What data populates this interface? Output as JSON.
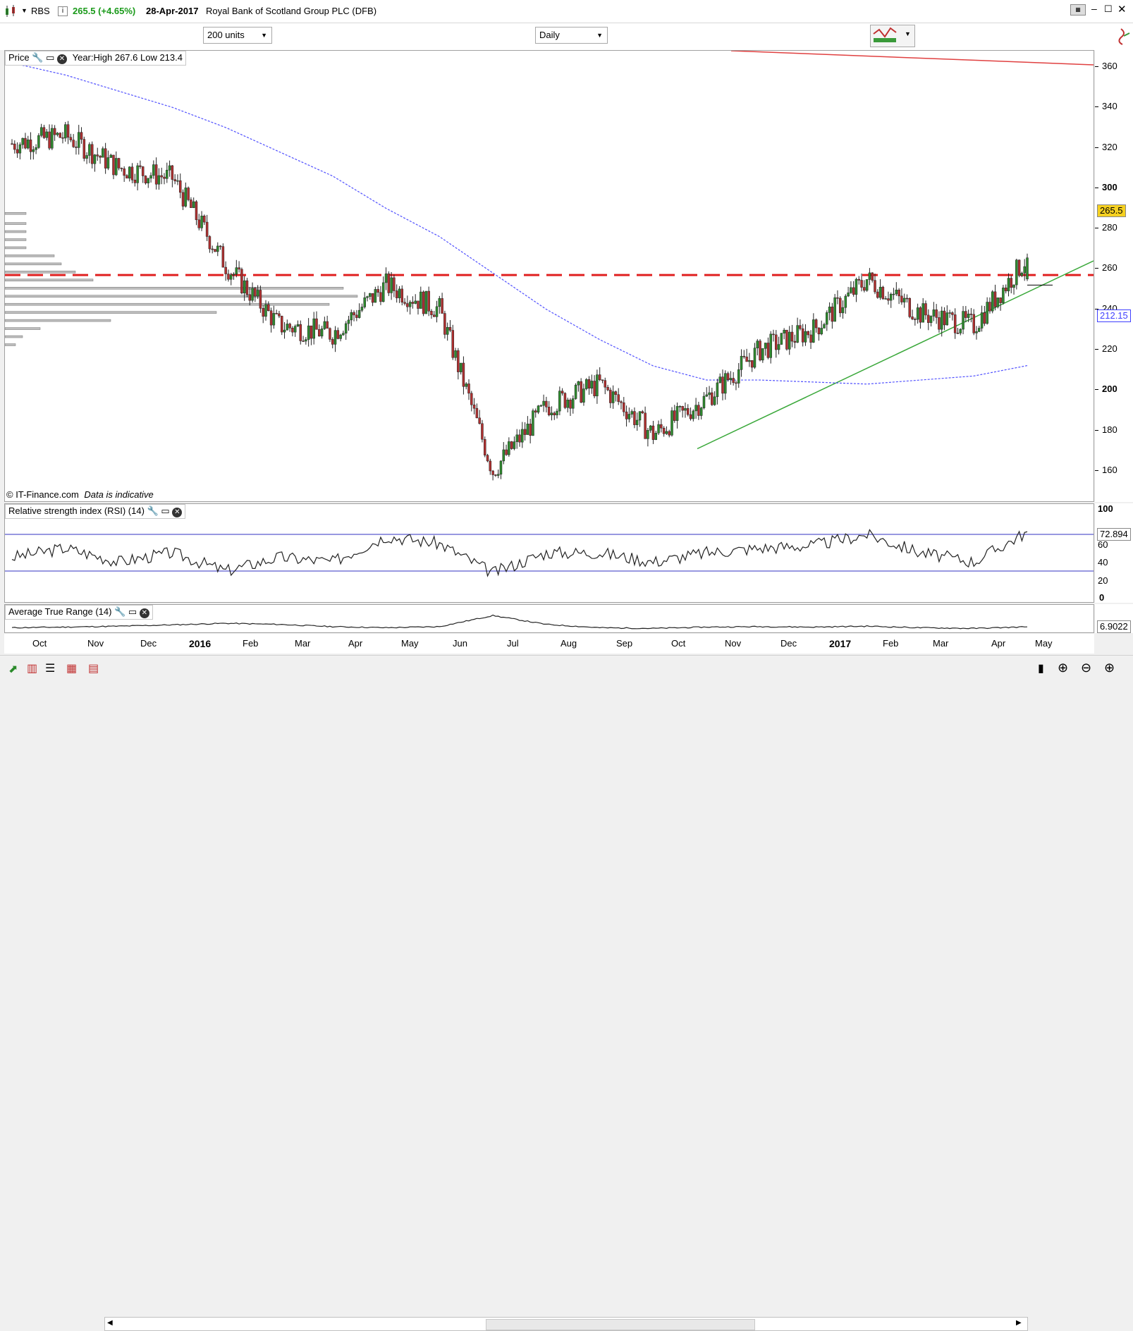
{
  "header": {
    "symbol": "RBS",
    "price_change": "265.5 (+4.65%)",
    "date": "28-Apr-2017",
    "instrument": "Royal Bank of Scotland Group PLC (DFB)"
  },
  "toolbar": {
    "units_select": "200 units",
    "period_select": "Daily"
  },
  "price_pane": {
    "title": "Price",
    "info": "Year:High 267.6 Low 213.4",
    "footer_source": "© IT-Finance.com",
    "footer_note": "Data is indicative",
    "last_price_tag": "265.5",
    "ma_tag": "212.15",
    "yticks": [
      "360",
      "340",
      "320",
      "300",
      "280",
      "260",
      "240",
      "220",
      "200",
      "180",
      "160"
    ]
  },
  "rsi_pane": {
    "title": "Relative strength index (RSI) (14)",
    "value_tag": "72.894",
    "yticks": [
      "100",
      "60",
      "40",
      "20",
      "0"
    ]
  },
  "atr_pane": {
    "title": "Average True Range (14)",
    "value_tag": "6.9022"
  },
  "xaxis": {
    "labels": [
      "Oct",
      "Nov",
      "Dec",
      "2016",
      "Feb",
      "Mar",
      "Apr",
      "May",
      "Jun",
      "Jul",
      "Aug",
      "Sep",
      "Oct",
      "Nov",
      "Dec",
      "2017",
      "Feb",
      "Mar",
      "Apr",
      "May"
    ]
  },
  "chart_data": [
    {
      "type": "line",
      "title": "Price",
      "ylim": [
        145,
        368
      ],
      "x": [
        "2015-10",
        "2015-11",
        "2015-12",
        "2016-01",
        "2016-02",
        "2016-03",
        "2016-04",
        "2016-05",
        "2016-06",
        "2016-07",
        "2016-08",
        "2016-09",
        "2016-10",
        "2016-11",
        "2016-12",
        "2017-01",
        "2017-02",
        "2017-03",
        "2017-04",
        "2017-04-28"
      ],
      "series": [
        {
          "values": [
            322,
            326,
            310,
            305,
            262,
            232,
            228,
            252,
            240,
            160,
            192,
            203,
            178,
            196,
            220,
            230,
            255,
            238,
            232,
            265.5
          ]
        }
      ],
      "reference_lines": {
        "resistance": 257,
        "moving_average_last": 212.15
      },
      "annotations": [
        "Year:High 267.6 Low 213.4"
      ]
    },
    {
      "type": "line",
      "title": "Relative strength index (RSI) (14)",
      "ylim": [
        0,
        100
      ],
      "series": [
        {
          "values": [
            45,
            55,
            40,
            50,
            30,
            45,
            40,
            68,
            60,
            28,
            50,
            50,
            40,
            50,
            55,
            58,
            70,
            50,
            40,
            72.894
          ]
        }
      ],
      "reference_lines": [
        70,
        30
      ]
    },
    {
      "type": "line",
      "title": "Average True Range (14)",
      "series": [
        {
          "values": [
            6.5,
            6.8,
            7.2,
            7.8,
            8.5,
            8,
            7,
            6.5,
            7,
            12,
            8,
            6.5,
            6.2,
            6.8,
            7,
            6.8,
            7.2,
            6.5,
            6.2,
            6.9022
          ]
        }
      ]
    }
  ]
}
